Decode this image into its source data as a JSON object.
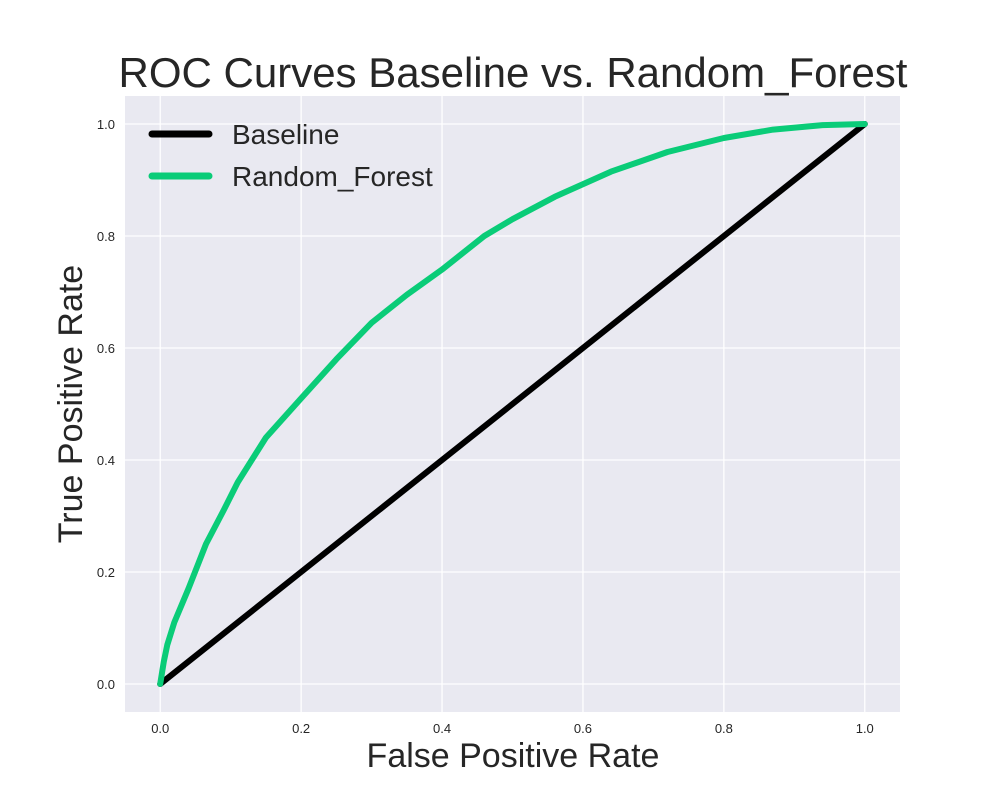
{
  "chart_data": {
    "type": "line",
    "title": "ROC Curves Baseline vs. Random_Forest",
    "xlabel": "False Positive Rate",
    "ylabel": "True Positive Rate",
    "xlim": [
      -0.05,
      1.05
    ],
    "ylim": [
      -0.05,
      1.05
    ],
    "x_ticks": [
      "0.0",
      "0.2",
      "0.4",
      "0.6",
      "0.8",
      "1.0"
    ],
    "y_ticks": [
      "0.0",
      "0.2",
      "0.4",
      "0.6",
      "0.8",
      "1.0"
    ],
    "grid": true,
    "legend_position": "top-left",
    "background": "#e9e9f1",
    "series": [
      {
        "name": "Baseline",
        "color": "#000000",
        "x": [
          0.0,
          1.0
        ],
        "y": [
          0.0,
          1.0
        ]
      },
      {
        "name": "Random_Forest",
        "color": "#0acc78",
        "x": [
          0.0,
          0.005,
          0.01,
          0.02,
          0.04,
          0.065,
          0.09,
          0.11,
          0.15,
          0.2,
          0.25,
          0.3,
          0.35,
          0.4,
          0.46,
          0.5,
          0.56,
          0.64,
          0.72,
          0.8,
          0.87,
          0.94,
          1.0
        ],
        "y": [
          0.0,
          0.04,
          0.07,
          0.11,
          0.17,
          0.25,
          0.31,
          0.36,
          0.44,
          0.51,
          0.58,
          0.645,
          0.695,
          0.74,
          0.8,
          0.83,
          0.87,
          0.915,
          0.95,
          0.975,
          0.99,
          0.998,
          1.0
        ]
      }
    ]
  }
}
